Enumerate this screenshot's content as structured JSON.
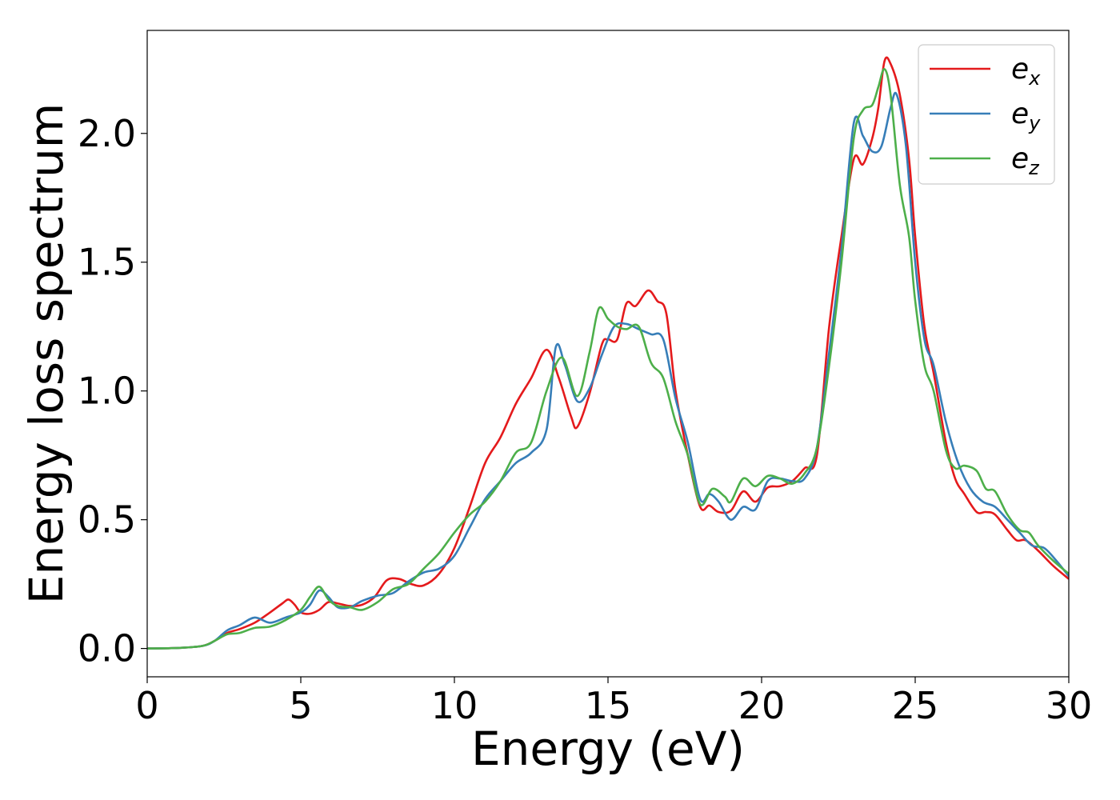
{
  "chart_data": {
    "type": "line",
    "title": "",
    "xlabel": "Energy (eV)",
    "ylabel": "Energy loss spectrum",
    "xlim": [
      0,
      30
    ],
    "ylim": [
      -0.11,
      2.4
    ],
    "xticks": [
      0,
      5,
      10,
      15,
      20,
      25,
      30
    ],
    "xtick_labels": [
      "0",
      "5",
      "10",
      "15",
      "20",
      "25",
      "30"
    ],
    "yticks": [
      0.0,
      0.5,
      1.0,
      1.5,
      2.0
    ],
    "ytick_labels": [
      "0.0",
      "0.5",
      "1.0",
      "1.5",
      "2.0"
    ],
    "grid": false,
    "legend_position": "top-right",
    "series": [
      {
        "name": "e_x",
        "label_base": "e",
        "label_sub": "x",
        "color": "#e41a1c",
        "x": [
          0,
          1,
          1.8,
          2.2,
          2.6,
          3.0,
          3.5,
          4.0,
          4.4,
          4.6,
          4.8,
          5.0,
          5.3,
          5.6,
          5.9,
          6.2,
          6.6,
          7.0,
          7.4,
          7.8,
          8.2,
          8.6,
          9.0,
          9.5,
          10.0,
          10.5,
          11.0,
          11.5,
          12.0,
          12.5,
          13.0,
          13.4,
          13.8,
          14.0,
          14.4,
          14.8,
          15.0,
          15.3,
          15.6,
          15.9,
          16.3,
          16.6,
          16.9,
          17.2,
          17.6,
          18.0,
          18.3,
          18.6,
          19.0,
          19.4,
          19.8,
          20.2,
          20.6,
          21.0,
          21.4,
          21.8,
          22.2,
          22.6,
          23.0,
          23.3,
          23.6,
          23.8,
          24.0,
          24.2,
          24.5,
          24.8,
          25.0,
          25.3,
          25.6,
          26.0,
          26.3,
          26.6,
          27.0,
          27.3,
          27.6,
          28.0,
          28.3,
          28.6,
          29.0,
          29.5,
          30.0
        ],
        "y": [
          0,
          0.002,
          0.01,
          0.03,
          0.06,
          0.075,
          0.1,
          0.14,
          0.175,
          0.19,
          0.17,
          0.14,
          0.135,
          0.15,
          0.18,
          0.175,
          0.165,
          0.17,
          0.2,
          0.265,
          0.27,
          0.25,
          0.245,
          0.29,
          0.39,
          0.55,
          0.72,
          0.82,
          0.95,
          1.05,
          1.16,
          1.05,
          0.9,
          0.86,
          0.99,
          1.18,
          1.2,
          1.2,
          1.34,
          1.33,
          1.39,
          1.35,
          1.3,
          1.0,
          0.75,
          0.55,
          0.555,
          0.53,
          0.535,
          0.61,
          0.57,
          0.625,
          0.63,
          0.65,
          0.7,
          0.75,
          1.25,
          1.6,
          1.9,
          1.88,
          1.98,
          2.1,
          2.28,
          2.27,
          2.15,
          1.9,
          1.6,
          1.25,
          1.07,
          0.8,
          0.66,
          0.6,
          0.53,
          0.53,
          0.52,
          0.46,
          0.42,
          0.42,
          0.38,
          0.32,
          0.27
        ]
      },
      {
        "name": "e_y",
        "label_base": "e",
        "label_sub": "y",
        "color": "#377eb8",
        "x": [
          0,
          1,
          1.8,
          2.2,
          2.6,
          3.0,
          3.5,
          4.0,
          4.5,
          5.0,
          5.3,
          5.6,
          5.9,
          6.2,
          6.6,
          7.0,
          7.5,
          8.0,
          8.5,
          9.0,
          9.5,
          10.0,
          10.5,
          11.0,
          11.5,
          12.0,
          12.5,
          13.0,
          13.3,
          13.6,
          14.0,
          14.4,
          14.8,
          15.2,
          15.6,
          16.0,
          16.4,
          16.8,
          17.2,
          17.6,
          18.0,
          18.3,
          18.6,
          19.0,
          19.4,
          19.8,
          20.2,
          20.6,
          21.0,
          21.4,
          21.8,
          22.2,
          22.6,
          23.0,
          23.3,
          23.6,
          23.9,
          24.2,
          24.4,
          24.7,
          25.0,
          25.3,
          25.6,
          26.0,
          26.4,
          26.8,
          27.2,
          27.6,
          28.0,
          28.4,
          28.8,
          29.2,
          29.6,
          30.0
        ],
        "y": [
          0,
          0.002,
          0.01,
          0.03,
          0.07,
          0.09,
          0.12,
          0.1,
          0.12,
          0.14,
          0.17,
          0.225,
          0.2,
          0.16,
          0.16,
          0.185,
          0.205,
          0.215,
          0.26,
          0.295,
          0.31,
          0.36,
          0.47,
          0.58,
          0.65,
          0.72,
          0.76,
          0.85,
          1.17,
          1.1,
          0.96,
          1.01,
          1.14,
          1.25,
          1.26,
          1.24,
          1.22,
          1.2,
          0.97,
          0.8,
          0.58,
          0.6,
          0.57,
          0.5,
          0.55,
          0.54,
          0.65,
          0.66,
          0.65,
          0.66,
          0.78,
          1.15,
          1.55,
          2.04,
          1.99,
          1.93,
          1.95,
          2.1,
          2.15,
          1.95,
          1.5,
          1.2,
          1.1,
          0.88,
          0.72,
          0.62,
          0.57,
          0.55,
          0.5,
          0.45,
          0.4,
          0.39,
          0.34,
          0.28
        ]
      },
      {
        "name": "e_z",
        "label_base": "e",
        "label_sub": "z",
        "color": "#4daf4a",
        "x": [
          0,
          1,
          1.8,
          2.2,
          2.6,
          3.0,
          3.5,
          4.0,
          4.5,
          5.0,
          5.3,
          5.6,
          5.9,
          6.2,
          6.6,
          7.0,
          7.5,
          8.0,
          8.5,
          9.0,
          9.5,
          10.0,
          10.5,
          11.0,
          11.5,
          12.0,
          12.5,
          13.0,
          13.5,
          14.0,
          14.4,
          14.7,
          15.0,
          15.3,
          15.6,
          16.0,
          16.4,
          16.8,
          17.2,
          17.6,
          18.0,
          18.4,
          18.8,
          19.0,
          19.4,
          19.8,
          20.2,
          20.6,
          21.0,
          21.4,
          21.8,
          22.2,
          22.6,
          23.0,
          23.3,
          23.6,
          23.8,
          24.0,
          24.2,
          24.5,
          24.8,
          25.0,
          25.3,
          25.6,
          26.0,
          26.3,
          26.6,
          27.0,
          27.3,
          27.6,
          28.0,
          28.4,
          28.7,
          29.0,
          29.5,
          30.0
        ],
        "y": [
          0,
          0.002,
          0.01,
          0.03,
          0.055,
          0.06,
          0.08,
          0.085,
          0.11,
          0.15,
          0.2,
          0.24,
          0.19,
          0.165,
          0.16,
          0.15,
          0.18,
          0.23,
          0.25,
          0.31,
          0.37,
          0.45,
          0.52,
          0.57,
          0.65,
          0.76,
          0.8,
          1.0,
          1.13,
          0.98,
          1.15,
          1.32,
          1.28,
          1.25,
          1.24,
          1.25,
          1.11,
          1.05,
          0.88,
          0.75,
          0.56,
          0.62,
          0.59,
          0.57,
          0.66,
          0.63,
          0.67,
          0.66,
          0.64,
          0.68,
          0.78,
          1.1,
          1.5,
          1.98,
          2.09,
          2.11,
          2.18,
          2.25,
          2.15,
          1.8,
          1.6,
          1.35,
          1.1,
          1.0,
          0.77,
          0.7,
          0.71,
          0.69,
          0.62,
          0.61,
          0.52,
          0.46,
          0.45,
          0.4,
          0.34,
          0.29
        ]
      }
    ]
  }
}
